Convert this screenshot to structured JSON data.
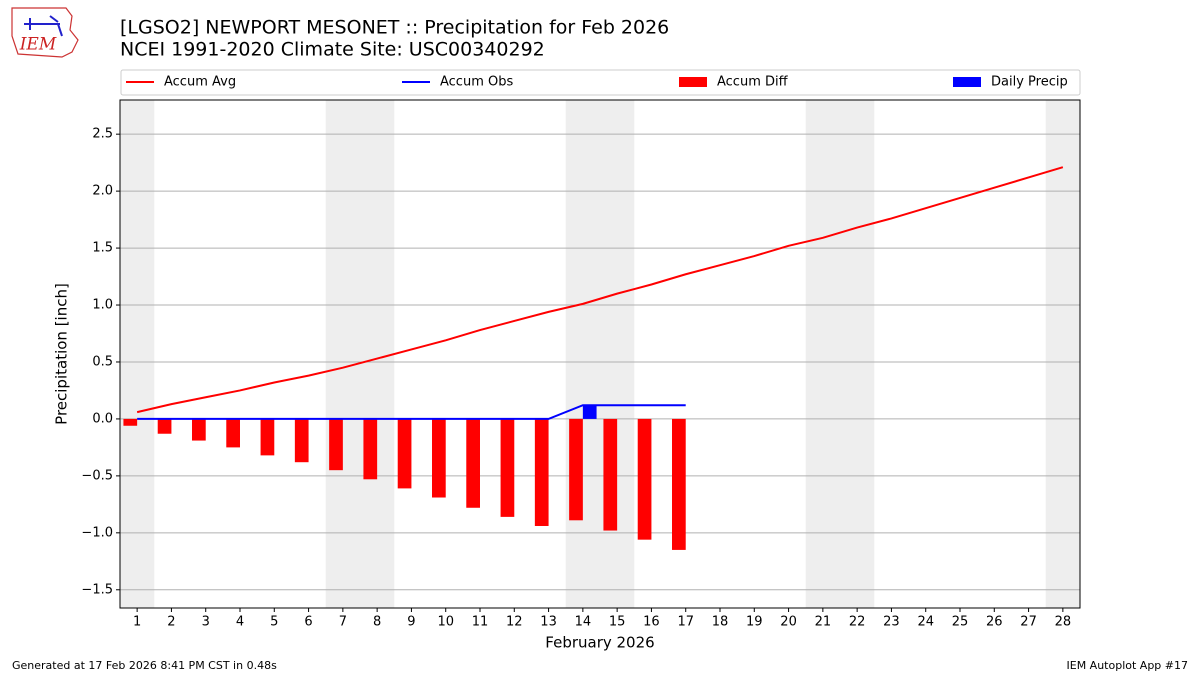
{
  "logo": "IEM",
  "footer_left": "Generated at 17 Feb 2026 8:41 PM CST in 0.48s",
  "footer_right": "IEM Autoplot App #17",
  "chart_data": {
    "type": "combo",
    "title": "[LGSO2] NEWPORT MESONET :: Precipitation for Feb 2026",
    "subtitle": "NCEI 1991-2020 Climate Site: USC00340292",
    "xlabel": "February 2026",
    "ylabel": "Precipitation [inch]",
    "x": [
      1,
      2,
      3,
      4,
      5,
      6,
      7,
      8,
      9,
      10,
      11,
      12,
      13,
      14,
      15,
      16,
      17,
      18,
      19,
      20,
      21,
      22,
      23,
      24,
      25,
      26,
      27,
      28
    ],
    "xlim": [
      0.5,
      28.5
    ],
    "xticks": [
      1,
      2,
      3,
      4,
      5,
      6,
      7,
      8,
      9,
      10,
      11,
      12,
      13,
      14,
      15,
      16,
      17,
      18,
      19,
      20,
      21,
      22,
      23,
      24,
      25,
      26,
      27,
      28
    ],
    "ylim": [
      -1.66,
      2.8
    ],
    "yticks": [
      {
        "value": -1.5,
        "label": "−1.5"
      },
      {
        "value": -1.0,
        "label": "−1.0"
      },
      {
        "value": -0.5,
        "label": "−0.5"
      },
      {
        "value": 0,
        "label": "0.0"
      },
      0.5,
      {
        "value": 1.0,
        "label": "1.0"
      },
      1.5,
      {
        "value": 2.0,
        "label": "2.0"
      },
      2.5
    ],
    "grid": true,
    "shaded_x": [
      1,
      7,
      8,
      14,
      15,
      21,
      22,
      28
    ],
    "shade_color": "#eeeeee",
    "series": [
      {
        "name": "Accum Avg",
        "type": "line",
        "color": "#ff0000",
        "values": [
          0.06,
          0.13,
          0.19,
          0.25,
          0.32,
          0.38,
          0.45,
          0.53,
          0.61,
          0.69,
          0.78,
          0.86,
          0.94,
          1.01,
          1.1,
          1.18,
          1.27,
          1.35,
          1.43,
          1.52,
          1.59,
          1.68,
          1.76,
          1.85,
          1.94,
          2.03,
          2.12,
          2.21
        ]
      },
      {
        "name": "Accum Obs",
        "type": "line",
        "color": "#0000ff",
        "values": [
          0,
          0,
          0,
          0,
          0,
          0,
          0,
          0,
          0,
          0,
          0,
          0,
          0,
          0.12,
          0.12,
          0.12,
          0.12,
          null,
          null,
          null,
          null,
          null,
          null,
          null,
          null,
          null,
          null,
          null
        ]
      },
      {
        "name": "Accum Diff",
        "type": "bar",
        "color": "#ff0000",
        "values": [
          -0.06,
          -0.13,
          -0.19,
          -0.25,
          -0.32,
          -0.38,
          -0.45,
          -0.53,
          -0.61,
          -0.69,
          -0.78,
          -0.86,
          -0.94,
          -0.89,
          -0.98,
          -1.06,
          -1.15,
          null,
          null,
          null,
          null,
          null,
          null,
          null,
          null,
          null,
          null,
          null
        ]
      },
      {
        "name": "Daily Precip",
        "type": "bar",
        "color": "#0000ff",
        "values": [
          0,
          0,
          0,
          0,
          0,
          0,
          0,
          0,
          0,
          0,
          0,
          0,
          0,
          0.12,
          0,
          0,
          0,
          null,
          null,
          null,
          null,
          null,
          null,
          null,
          null,
          null,
          null,
          null
        ]
      }
    ]
  }
}
